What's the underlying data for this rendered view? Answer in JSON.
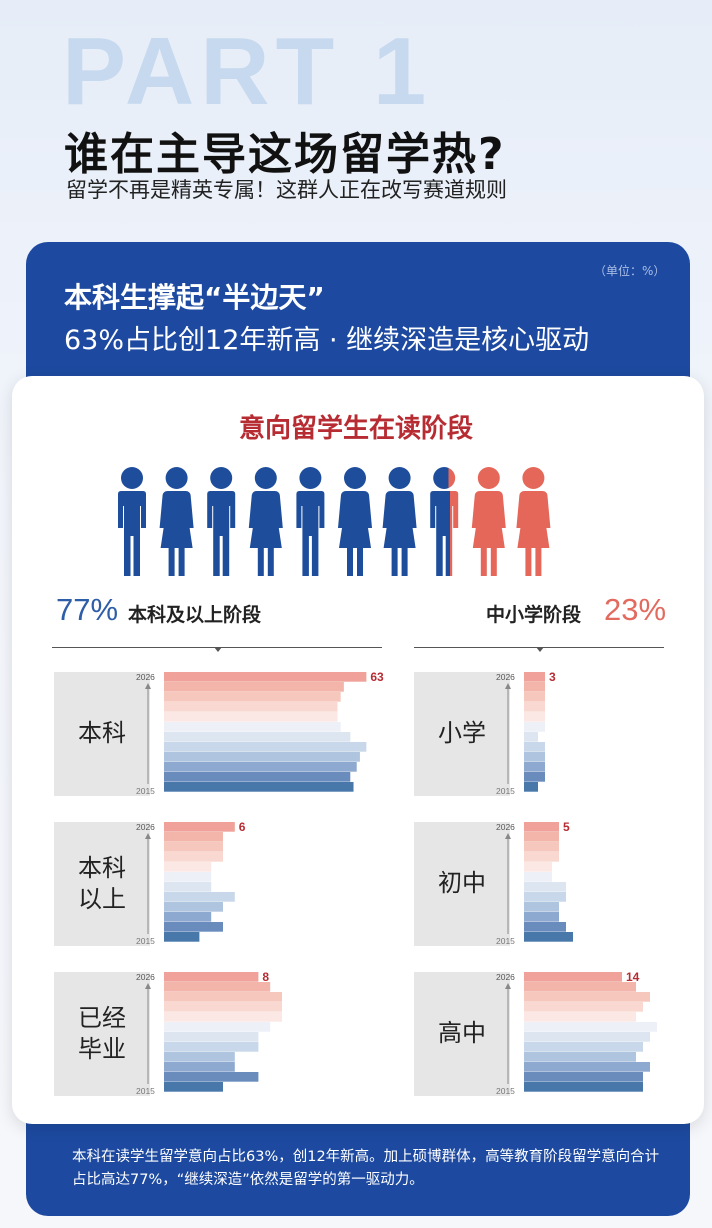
{
  "header": {
    "part_label": "PART 1",
    "headline": "谁在主导这场留学热?",
    "subheadline": "留学不再是精英专属！这群人正在改写赛道规则"
  },
  "card": {
    "unit": "（单位：%）",
    "title": "本科生撑起“半边天”",
    "subtitle": "63%占比创12年新高 · 继续深造是核心驱动"
  },
  "chart_title": "意向留学生在读阶段",
  "pictogram": {
    "total": 10,
    "blue_share": 0.77,
    "blue_color": "#1e4d9b",
    "red_color": "#e5675a",
    "icons": [
      "male",
      "female",
      "male",
      "female",
      "male",
      "female",
      "female",
      "male",
      "female",
      "female"
    ]
  },
  "split": {
    "left_pct": "77%",
    "left_label": "本科及以上阶段",
    "right_label": "中小学阶段",
    "right_pct": "23%"
  },
  "chart_data": [
    {
      "type": "bar",
      "panel": "本科",
      "label": "63",
      "y_top": "2026",
      "y_bottom": "2015",
      "values": [
        63,
        56,
        55,
        54,
        54,
        55,
        58,
        63,
        61,
        60,
        58,
        59
      ],
      "xlim": [
        0,
        66
      ]
    },
    {
      "type": "bar",
      "panel": "本科\n以上",
      "label": "6",
      "y_top": "2026",
      "y_bottom": "2015",
      "values": [
        6,
        5,
        5,
        5,
        4,
        4,
        4,
        6,
        5,
        4,
        5,
        3
      ],
      "xlim": [
        0,
        20
      ]
    },
    {
      "type": "bar",
      "panel": "已经\n毕业",
      "label": "8",
      "y_top": "2026",
      "y_bottom": "2015",
      "values": [
        8,
        9,
        10,
        10,
        10,
        9,
        8,
        8,
        6,
        6,
        8,
        5
      ],
      "xlim": [
        0,
        20
      ]
    },
    {
      "type": "bar",
      "panel": "小学",
      "label": "3",
      "y_top": "2026",
      "y_bottom": "2015",
      "values": [
        3,
        3,
        3,
        3,
        3,
        3,
        2,
        3,
        3,
        3,
        3,
        2
      ],
      "xlim": [
        0,
        20
      ]
    },
    {
      "type": "bar",
      "panel": "初中",
      "label": "5",
      "y_top": "2026",
      "y_bottom": "2015",
      "values": [
        5,
        5,
        5,
        5,
        4,
        4,
        6,
        6,
        5,
        5,
        6,
        7
      ],
      "xlim": [
        0,
        20
      ]
    },
    {
      "type": "bar",
      "panel": "高中",
      "label": "14",
      "y_top": "2026",
      "y_bottom": "2015",
      "values": [
        14,
        16,
        18,
        17,
        16,
        19,
        18,
        17,
        16,
        18,
        17,
        17
      ],
      "xlim": [
        0,
        20
      ]
    }
  ],
  "footer": "本科在读学生留学意向占比63%，创12年新高。加上硕博群体，高等教育阶段留学意向合计占比高达77%，“继续深造”依然是留学的第一驱动力。"
}
